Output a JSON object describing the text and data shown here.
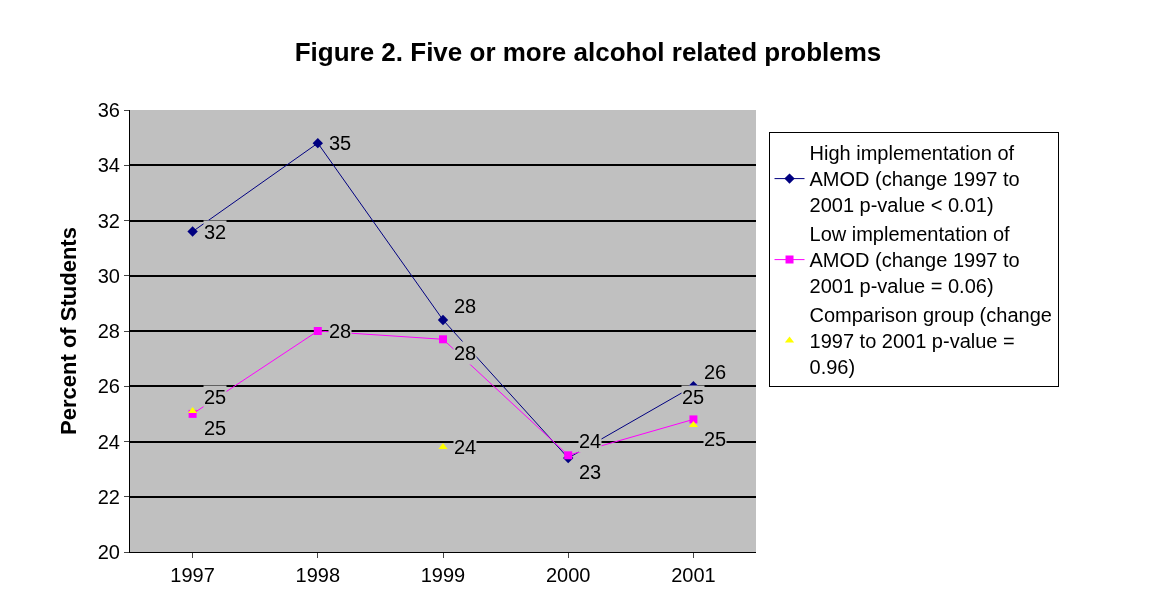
{
  "chart_data": {
    "type": "line",
    "title": "Figure 2. Five or more alcohol related problems",
    "ylabel": "Percent of Students",
    "categories": [
      "1997",
      "1998",
      "1999",
      "2000",
      "2001"
    ],
    "ylim": [
      20,
      36
    ],
    "yticks": [
      20,
      22,
      24,
      26,
      28,
      30,
      32,
      34,
      36
    ],
    "grid": "y",
    "legend": "right",
    "line_style": "solid",
    "series": [
      {
        "name": "High implementation of AMOD (change 1997 to 2001 p-value < 0.01)",
        "color": "#000080",
        "marker": "diamond",
        "values": [
          31.6,
          34.8,
          28.4,
          23.4,
          26.0
        ],
        "value_labels": [
          "32",
          "35",
          "28",
          "23",
          "26"
        ]
      },
      {
        "name": "Low implementation of AMOD (change 1997 to 2001 p-value = 0.06)",
        "color": "#ff00ff",
        "marker": "square",
        "values": [
          25.0,
          28.0,
          27.7,
          23.5,
          24.8
        ],
        "value_labels": [
          "25",
          "28",
          "28",
          "24",
          "25"
        ]
      },
      {
        "name": "Comparison group (change 1997 to 2001 p-value = 0.96)",
        "color": "#ffff00",
        "type": "scatter",
        "marker": "triangle",
        "values": [
          25.1,
          null,
          23.8,
          null,
          24.6
        ],
        "value_labels": [
          "25",
          null,
          "24",
          null,
          "25"
        ]
      }
    ]
  }
}
